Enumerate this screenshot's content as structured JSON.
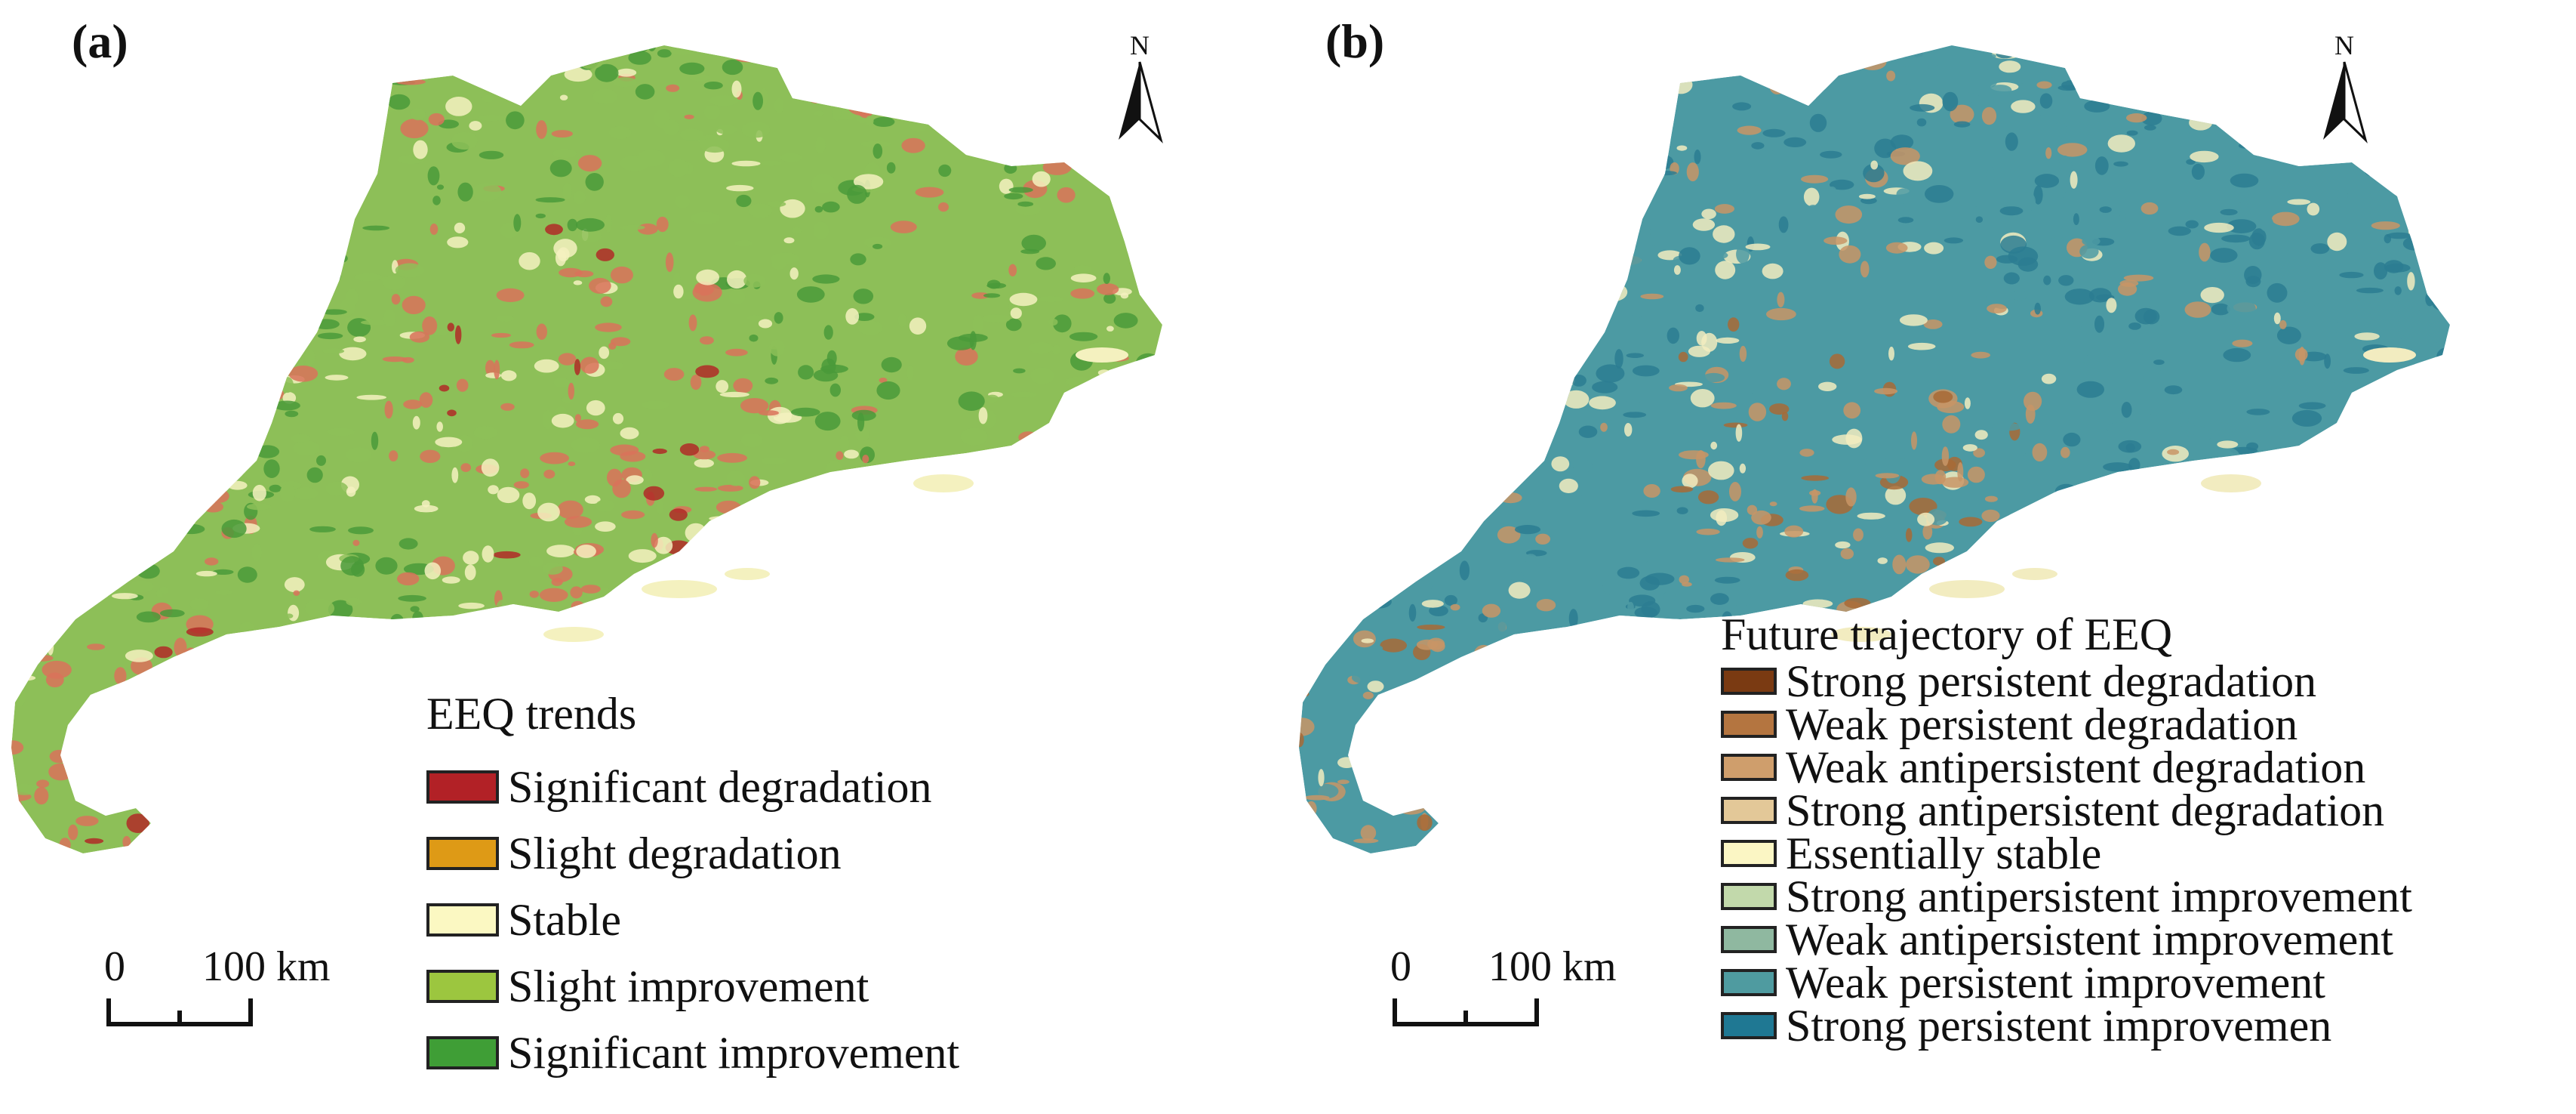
{
  "panel_a": {
    "label": "(a)",
    "north_label": "N",
    "legend_title": "EEQ trends",
    "legend": [
      {
        "label": "Significant degradation",
        "color": "#b22126"
      },
      {
        "label": "Slight degradation",
        "color": "#de9a16"
      },
      {
        "label": "Stable",
        "color": "#fbf8c2"
      },
      {
        "label": "Slight improvement",
        "color": "#9cc63f"
      },
      {
        "label": "Significant  improvement",
        "color": "#3f9e36"
      }
    ],
    "scale": {
      "zero": "0",
      "distance": "100 km"
    },
    "map_colors": {
      "base": "#8dbf58",
      "dark": "#4a9a3a",
      "degradation": "#d9725a",
      "strong": "#b02a27",
      "stable": "#f4f1bf"
    }
  },
  "panel_b": {
    "label": "(b)",
    "north_label": "N",
    "legend_title": "Future trajectory of EEQ",
    "legend": [
      {
        "label": "Strong persistent degradation",
        "color": "#7a3a12"
      },
      {
        "label": "Weak persistent degradation",
        "color": "#b47540"
      },
      {
        "label": "Weak antipersistent degradation",
        "color": "#cf9e6c"
      },
      {
        "label": "Strong antipersistent degradation",
        "color": "#e3c898"
      },
      {
        "label": "Essentially stable",
        "color": "#fbf6c4"
      },
      {
        "label": "Strong antipersistent improvement",
        "color": "#c2d9ab"
      },
      {
        "label": "Weak antipersistent improvement",
        "color": "#8fb8a0"
      },
      {
        "label": "Weak persistent improvement",
        "color": "#4f9ba0"
      },
      {
        "label": "Strong persistent improvemen",
        "color": "#1f7893"
      }
    ],
    "scale": {
      "zero": "0",
      "distance": "100 km"
    },
    "map_colors": {
      "base": "#4c9aa3",
      "dark": "#2b7d92",
      "degradation": "#c89566",
      "strong": "#a86a36",
      "stable": "#f2ecc0"
    }
  }
}
